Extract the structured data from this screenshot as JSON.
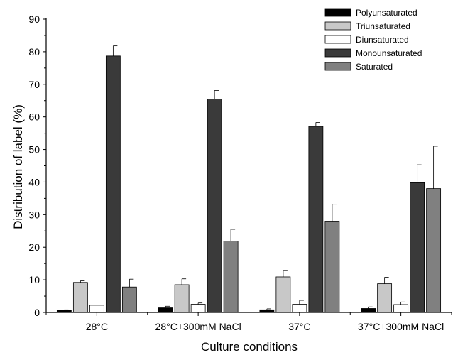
{
  "chart_data": {
    "type": "bar",
    "xlabel": "Culture conditions",
    "ylabel": "Distribution of label (%)",
    "ylim": [
      0,
      90
    ],
    "yticks": [
      0,
      10,
      20,
      30,
      40,
      50,
      60,
      70,
      80,
      90
    ],
    "categories": [
      "28°C",
      "28°C+300mM NaCl",
      "37°C",
      "37°C+300mM NaCl"
    ],
    "legend_position": "top-right",
    "series": [
      {
        "name": "Polyunsaturated",
        "color": "#000000",
        "values": [
          0.6,
          1.4,
          0.8,
          1.2
        ],
        "errors": [
          0.2,
          0.5,
          0.3,
          0.5
        ]
      },
      {
        "name": "Triunsaturated",
        "color": "#c8c8c8",
        "values": [
          9.2,
          8.5,
          10.9,
          8.8
        ],
        "errors": [
          0.5,
          1.8,
          2.0,
          2.0
        ]
      },
      {
        "name": "Diunsaturated",
        "color": "#ffffff",
        "values": [
          2.2,
          2.5,
          2.5,
          2.4
        ],
        "errors": [
          0.1,
          0.4,
          1.2,
          0.8
        ]
      },
      {
        "name": "Monounsaturated",
        "color": "#3a3a3a",
        "values": [
          78.7,
          65.5,
          57.1,
          39.8
        ],
        "errors": [
          3.1,
          2.6,
          1.2,
          5.5
        ]
      },
      {
        "name": "Saturated",
        "color": "#808080",
        "values": [
          7.8,
          21.9,
          28.0,
          38.0
        ],
        "errors": [
          2.4,
          3.6,
          5.2,
          13.0
        ]
      }
    ]
  }
}
